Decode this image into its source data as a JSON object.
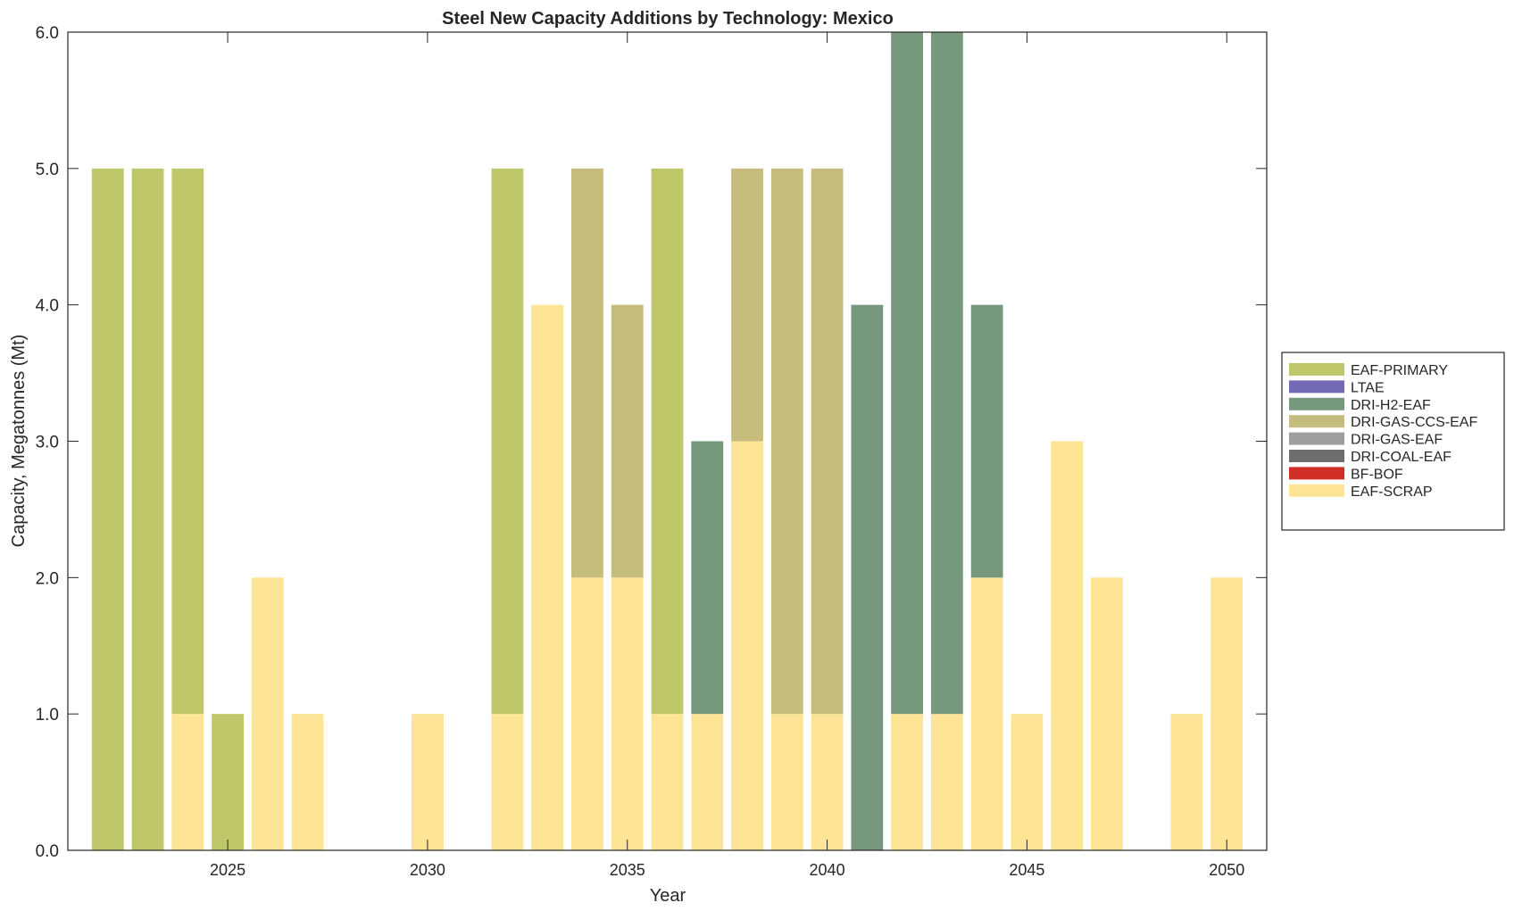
{
  "chart_data": {
    "type": "bar",
    "stacked": true,
    "title": "Steel New Capacity Additions by Technology: Mexico",
    "xlabel": "Year",
    "ylabel": "Capacity, Megatonnes (Mt)",
    "xlim": [
      2021,
      2051
    ],
    "ylim": [
      0,
      6
    ],
    "xticks": [
      2025,
      2030,
      2035,
      2040,
      2045,
      2050
    ],
    "xtick_labels": [
      "2025",
      "2030",
      "2035",
      "2040",
      "2045",
      "2050"
    ],
    "yticks": [
      0,
      1,
      2,
      3,
      4,
      5,
      6
    ],
    "ytick_labels": [
      "0.0",
      "1.0",
      "2.0",
      "3.0",
      "4.0",
      "5.0",
      "6.0"
    ],
    "legend_placement": "outside-right",
    "categories": [
      2022,
      2023,
      2024,
      2025,
      2026,
      2027,
      2028,
      2029,
      2030,
      2031,
      2032,
      2033,
      2034,
      2035,
      2036,
      2037,
      2038,
      2039,
      2040,
      2041,
      2042,
      2043,
      2044,
      2045,
      2046,
      2047,
      2048,
      2049,
      2050
    ],
    "series": [
      {
        "name": "EAF-SCRAP",
        "color": "#FEE495",
        "values": [
          0,
          0,
          1,
          0,
          2,
          1,
          0,
          0,
          1,
          0,
          1,
          4,
          2,
          2,
          1,
          1,
          3,
          1,
          1,
          0,
          1,
          1,
          2,
          1,
          3,
          2,
          0,
          1,
          2
        ]
      },
      {
        "name": "BF-BOF",
        "color": "#D12E27",
        "values": [
          0,
          0,
          0,
          0,
          0,
          0,
          0,
          0,
          0,
          0,
          0,
          0,
          0,
          0,
          0,
          0,
          0,
          0,
          0,
          0,
          0,
          0,
          0,
          0,
          0,
          0,
          0,
          0,
          0
        ]
      },
      {
        "name": "DRI-COAL-EAF",
        "color": "#6E6E6E",
        "values": [
          0,
          0,
          0,
          0,
          0,
          0,
          0,
          0,
          0,
          0,
          0,
          0,
          0,
          0,
          0,
          0,
          0,
          0,
          0,
          0,
          0,
          0,
          0,
          0,
          0,
          0,
          0,
          0,
          0
        ]
      },
      {
        "name": "DRI-GAS-EAF",
        "color": "#9E9E9E",
        "values": [
          0,
          0,
          0,
          0,
          0,
          0,
          0,
          0,
          0,
          0,
          0,
          0,
          0,
          0,
          0,
          0,
          0,
          0,
          0,
          0,
          0,
          0,
          0,
          0,
          0,
          0,
          0,
          0,
          0
        ]
      },
      {
        "name": "DRI-GAS-CCS-EAF",
        "color": "#C6BC7D",
        "values": [
          0,
          0,
          0,
          0,
          0,
          0,
          0,
          0,
          0,
          0,
          0,
          0,
          3,
          2,
          0,
          0,
          2,
          4,
          4,
          0,
          0,
          0,
          0,
          0,
          0,
          0,
          0,
          0,
          0
        ]
      },
      {
        "name": "DRI-H2-EAF",
        "color": "#76997D",
        "values": [
          0,
          0,
          0,
          0,
          0,
          0,
          0,
          0,
          0,
          0,
          0,
          0,
          0,
          0,
          0,
          2,
          0,
          0,
          0,
          4,
          5,
          5,
          2,
          0,
          0,
          0,
          0,
          0,
          0
        ]
      },
      {
        "name": "LTAE",
        "color": "#7369B5",
        "values": [
          0,
          0,
          0,
          0,
          0,
          0,
          0,
          0,
          0,
          0,
          0,
          0,
          0,
          0,
          0,
          0,
          0,
          0,
          0,
          0,
          0,
          0,
          0,
          0,
          0,
          0,
          0,
          0,
          0
        ]
      },
      {
        "name": "EAF-PRIMARY",
        "color": "#BEC86B",
        "values": [
          5,
          5,
          4,
          1,
          0,
          0,
          0,
          0,
          0,
          0,
          4,
          0,
          0,
          0,
          4,
          0,
          0,
          0,
          0,
          0,
          0,
          0,
          0,
          0,
          0,
          0,
          0,
          0,
          0
        ]
      }
    ],
    "legend_order": [
      "EAF-PRIMARY",
      "LTAE",
      "DRI-H2-EAF",
      "DRI-GAS-CCS-EAF",
      "DRI-GAS-EAF",
      "DRI-COAL-EAF",
      "BF-BOF",
      "EAF-SCRAP"
    ]
  }
}
